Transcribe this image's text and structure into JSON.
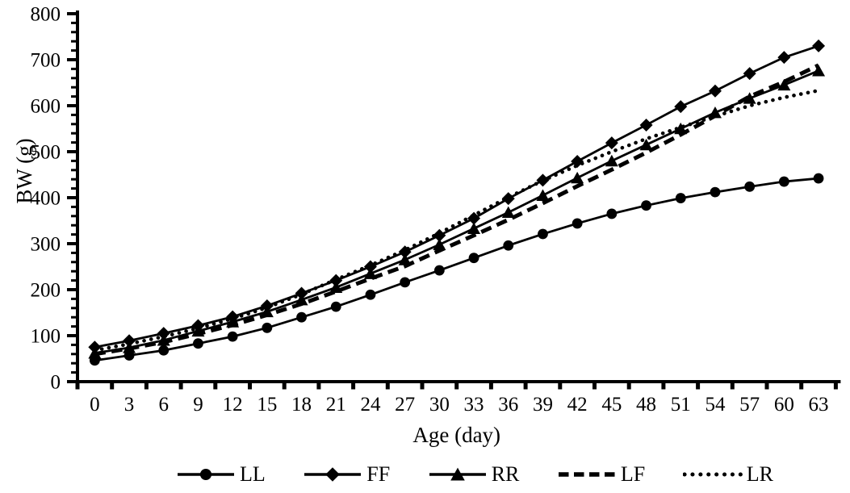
{
  "figure": {
    "title": "",
    "background": "#ffffff",
    "ink_color": "#000000"
  },
  "chart_data": {
    "type": "line",
    "title": "",
    "xlabel": "Age (day)",
    "ylabel": "BW (g)",
    "x": [
      0,
      3,
      6,
      9,
      12,
      15,
      18,
      21,
      24,
      27,
      30,
      33,
      36,
      39,
      42,
      45,
      48,
      51,
      54,
      57,
      60,
      63
    ],
    "yticks": [
      0,
      100,
      200,
      300,
      400,
      500,
      600,
      700,
      800
    ],
    "ylim": [
      0,
      800
    ],
    "yminor_step": 20,
    "grid": false,
    "legend_position": "bottom",
    "color": "#000000",
    "series": [
      {
        "name": "LL",
        "marker": "circle",
        "line": "solid",
        "values": [
          46,
          57,
          68,
          83,
          98,
          117,
          140,
          163,
          189,
          216,
          242,
          269,
          296,
          321,
          344,
          365,
          383,
          399,
          412,
          424,
          435,
          442
        ]
      },
      {
        "name": "FF",
        "marker": "diamond",
        "line": "solid",
        "values": [
          75,
          89,
          105,
          122,
          141,
          165,
          192,
          220,
          250,
          282,
          318,
          355,
          398,
          438,
          479,
          519,
          558,
          598,
          632,
          670,
          705,
          730
        ]
      },
      {
        "name": "RR",
        "marker": "triangle-up",
        "line": "solid",
        "values": [
          62,
          74,
          90,
          110,
          130,
          152,
          178,
          205,
          235,
          265,
          298,
          333,
          368,
          405,
          443,
          480,
          515,
          550,
          585,
          616,
          645,
          676
        ]
      },
      {
        "name": "LF",
        "marker": "none",
        "line": "dashed",
        "values": [
          60,
          72,
          86,
          104,
          123,
          145,
          169,
          196,
          224,
          251,
          285,
          318,
          352,
          388,
          425,
          461,
          498,
          537,
          578,
          620,
          652,
          688
        ]
      },
      {
        "name": "LR",
        "marker": "none",
        "line": "dotted",
        "values": [
          68,
          82,
          98,
          116,
          137,
          161,
          190,
          222,
          253,
          286,
          323,
          362,
          401,
          437,
          470,
          500,
          528,
          553,
          577,
          600,
          618,
          633
        ]
      }
    ]
  }
}
